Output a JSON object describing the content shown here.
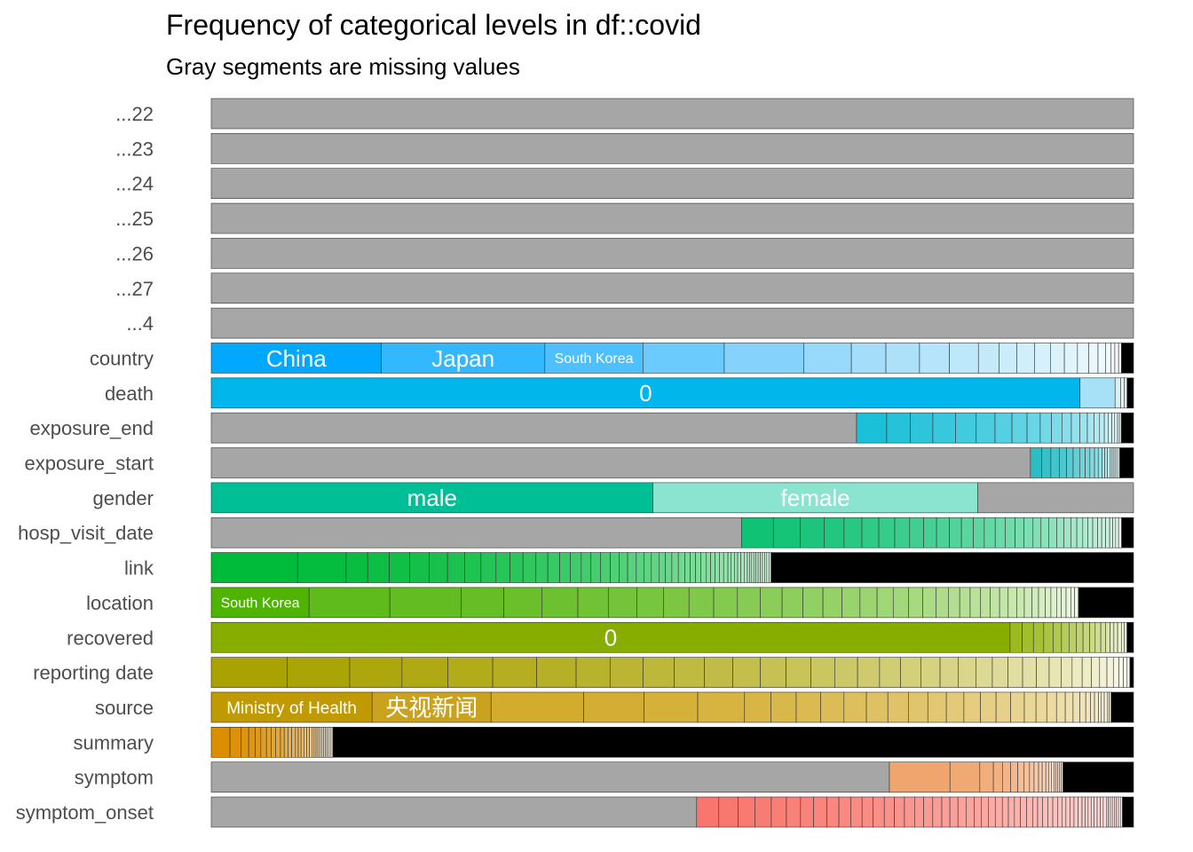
{
  "chart_data": {
    "type": "bar",
    "title": "Frequency of categorical levels in df::covid",
    "subtitle": "Gray segments are missing values",
    "colors": {
      "missing": "#a6a6a6",
      "other": "#000000",
      "border": "#333333"
    },
    "rows": [
      {
        "name": "...22",
        "segments": [
          {
            "value": 1.0,
            "color": "#a6a6a6"
          }
        ]
      },
      {
        "name": "...23",
        "segments": [
          {
            "value": 1.0,
            "color": "#a6a6a6"
          }
        ]
      },
      {
        "name": "...24",
        "segments": [
          {
            "value": 1.0,
            "color": "#a6a6a6"
          }
        ]
      },
      {
        "name": "...25",
        "segments": [
          {
            "value": 1.0,
            "color": "#a6a6a6"
          }
        ]
      },
      {
        "name": "...26",
        "segments": [
          {
            "value": 1.0,
            "color": "#a6a6a6"
          }
        ]
      },
      {
        "name": "...27",
        "segments": [
          {
            "value": 1.0,
            "color": "#a6a6a6"
          }
        ]
      },
      {
        "name": "...4",
        "segments": [
          {
            "value": 1.0,
            "color": "#a6a6a6"
          }
        ]
      },
      {
        "name": "country",
        "segments": [
          {
            "value": 0.182,
            "color": "#00a9ff",
            "label": "China",
            "label_size": 26
          },
          {
            "value": 0.175,
            "color": "#33b8ff",
            "label": "Japan",
            "label_size": 26
          },
          {
            "value": 0.105,
            "color": "#4fc0ff",
            "label": "South Korea",
            "label_size": 16
          },
          {
            "value": 0.087,
            "color": "#6ccbfd"
          },
          {
            "value": 0.085,
            "color": "#85d3fc"
          },
          {
            "value": 0.051,
            "color": "#96d9fb"
          },
          {
            "value": 0.037,
            "color": "#a4ddfa"
          },
          {
            "value": 0.036,
            "color": "#ade1fa"
          },
          {
            "value": 0.032,
            "color": "#b6e4fa"
          },
          {
            "value": 0.031,
            "color": "#bde7fa"
          },
          {
            "value": 0.022,
            "color": "#c4eafa"
          },
          {
            "value": 0.019,
            "color": "#cbedfb"
          },
          {
            "value": 0.019,
            "color": "#d1effb"
          },
          {
            "value": 0.017,
            "color": "#d6f1fb"
          },
          {
            "value": 0.015,
            "color": "#dcf3fc"
          },
          {
            "value": 0.014,
            "color": "#e0f4fc"
          },
          {
            "value": 0.012,
            "color": "#e5f6fc"
          },
          {
            "value": 0.01,
            "color": "#e9f7fd"
          },
          {
            "value": 0.008,
            "color": "#edf9fd"
          },
          {
            "value": 0.006,
            "color": "#f1fafe"
          },
          {
            "value": 0.004,
            "color": "#f4fbfe"
          },
          {
            "value": 0.004,
            "color": "#f7fcfe"
          },
          {
            "value": 0.003,
            "color": "#fafdff"
          },
          {
            "value": 0.013,
            "color": "#000000"
          }
        ]
      },
      {
        "name": "death",
        "segments": [
          {
            "value": 0.942,
            "color": "#00b6eb",
            "label": "0",
            "label_size": 26
          },
          {
            "value": 0.038,
            "color": "#a7e1f7"
          },
          {
            "value": 0.006,
            "color": "#d3f0fb"
          },
          {
            "value": 0.004,
            "color": "#e6f6fd"
          },
          {
            "value": 0.003,
            "color": "#f2fafe"
          },
          {
            "value": 0.007,
            "color": "#000000"
          }
        ]
      },
      {
        "name": "exposure_end",
        "gradient": {
          "from": "#1ac0d8",
          "to": "#f4fcfd",
          "widths": [
            0.032,
            0.025,
            0.024,
            0.024,
            0.022,
            0.02,
            0.018,
            0.016,
            0.014,
            0.012,
            0.011,
            0.01,
            0.009,
            0.008,
            0.007,
            0.006,
            0.005,
            0.004,
            0.004,
            0.003,
            0.003,
            0.002,
            0.002
          ]
        },
        "before": [
          {
            "value": 0.685,
            "color": "#a6a6a6"
          }
        ],
        "after": [
          {
            "value": 0.013,
            "color": "#000000"
          }
        ]
      },
      {
        "name": "exposure_start",
        "gradient": {
          "from": "#2cbdc5",
          "to": "#f2fbfc",
          "widths": [
            0.012,
            0.01,
            0.009,
            0.008,
            0.007,
            0.007,
            0.006,
            0.005,
            0.005,
            0.004,
            0.004,
            0.003,
            0.003,
            0.003,
            0.002,
            0.002,
            0.002,
            0.002,
            0.002
          ]
        },
        "before": [
          {
            "value": 0.882,
            "color": "#a6a6a6"
          }
        ],
        "after": [
          {
            "value": 0.015,
            "color": "#000000"
          }
        ]
      },
      {
        "name": "gender",
        "segments": [
          {
            "value": 0.479,
            "color": "#00bf96",
            "label": "male",
            "label_size": 26
          },
          {
            "value": 0.352,
            "color": "#8ae4cf",
            "label": "female",
            "label_size": 26
          },
          {
            "value": 0.169,
            "color": "#a6a6a6"
          }
        ]
      },
      {
        "name": "hosp_visit_date",
        "gradient": {
          "from": "#10c274",
          "to": "#e6f8ef",
          "widths": [
            0.032,
            0.027,
            0.024,
            0.02,
            0.018,
            0.017,
            0.016,
            0.015,
            0.014,
            0.013,
            0.013,
            0.012,
            0.012,
            0.011,
            0.011,
            0.01,
            0.01,
            0.009,
            0.009,
            0.008,
            0.008,
            0.008,
            0.007,
            0.007,
            0.006,
            0.006,
            0.005,
            0.005,
            0.005,
            0.004,
            0.004,
            0.004,
            0.003,
            0.003,
            0.003,
            0.003
          ]
        },
        "before": [
          {
            "value": 0.533,
            "color": "#a6a6a6"
          }
        ],
        "after": [
          {
            "value": 0.012,
            "color": "#000000"
          }
        ]
      },
      {
        "name": "link",
        "gradient": {
          "from": "#00bb3a",
          "to": "#d8f3df",
          "widths": [
            0.08,
            0.045,
            0.02,
            0.02,
            0.019,
            0.018,
            0.017,
            0.016,
            0.015,
            0.014,
            0.013,
            0.012,
            0.012,
            0.011,
            0.011,
            0.01,
            0.01,
            0.009,
            0.009,
            0.009,
            0.008,
            0.008,
            0.008,
            0.007,
            0.007,
            0.007,
            0.006,
            0.006,
            0.006,
            0.006,
            0.005,
            0.005,
            0.005,
            0.005,
            0.004,
            0.004,
            0.004,
            0.004,
            0.004,
            0.003,
            0.003,
            0.003,
            0.003,
            0.003,
            0.003,
            0.002,
            0.002,
            0.002,
            0.002,
            0.002,
            0.002,
            0.002,
            0.002,
            0.002,
            0.002,
            0.002
          ]
        },
        "after": [
          {
            "value": 0.336,
            "color": "#000000"
          }
        ]
      },
      {
        "name": "location",
        "segments": [
          {
            "value": 0.103,
            "color": "#4eb400",
            "label": "South Korea",
            "label_size": 16
          }
        ],
        "gradient": {
          "from": "#5fba1c",
          "to": "#eef8e4",
          "widths": [
            0.085,
            0.075,
            0.045,
            0.04,
            0.038,
            0.032,
            0.03,
            0.028,
            0.027,
            0.026,
            0.025,
            0.024,
            0.023,
            0.022,
            0.021,
            0.02,
            0.019,
            0.018,
            0.017,
            0.016,
            0.015,
            0.014,
            0.013,
            0.012,
            0.011,
            0.011,
            0.01,
            0.01,
            0.009,
            0.009,
            0.008,
            0.008,
            0.007,
            0.007,
            0.006,
            0.006,
            0.005,
            0.005,
            0.005,
            0.004,
            0.004
          ]
        },
        "after": [
          {
            "value": 0.058,
            "color": "#000000"
          }
        ]
      },
      {
        "name": "recovered",
        "segments": [
          {
            "value": 0.854,
            "color": "#87ad00",
            "label": "0",
            "label_size": 26
          }
        ],
        "gradient": {
          "from": "#9cba1f",
          "to": "#f3f7e3",
          "widths": [
            0.013,
            0.012,
            0.011,
            0.01,
            0.009,
            0.008,
            0.008,
            0.007,
            0.007,
            0.006,
            0.006,
            0.005,
            0.005,
            0.004,
            0.004,
            0.004,
            0.003,
            0.003
          ]
        },
        "after": [
          {
            "value": 0.007,
            "color": "#000000"
          }
        ]
      },
      {
        "name": "reporting date",
        "gradient": {
          "from": "#a9a200",
          "to": "#fdfdf4",
          "widths": [
            0.083,
            0.068,
            0.057,
            0.05,
            0.049,
            0.048,
            0.043,
            0.037,
            0.036,
            0.034,
            0.033,
            0.031,
            0.03,
            0.028,
            0.027,
            0.026,
            0.025,
            0.024,
            0.023,
            0.022,
            0.021,
            0.02,
            0.019,
            0.018,
            0.017,
            0.016,
            0.015,
            0.014,
            0.013,
            0.012,
            0.011,
            0.01,
            0.009,
            0.008,
            0.007,
            0.006,
            0.005,
            0.004,
            0.003
          ]
        },
        "after": [
          {
            "value": 0.004,
            "color": "#000000"
          }
        ]
      },
      {
        "name": "source",
        "segments": [
          {
            "value": 0.165,
            "color": "#c09a00",
            "label": "Ministry of Health",
            "label_size": 19
          },
          {
            "value": 0.122,
            "color": "#caa21e",
            "label": "央视新闻",
            "label_size": 26
          }
        ],
        "gradient": {
          "from": "#d3ac2e",
          "to": "#fbf6e6",
          "widths": [
            0.095,
            0.062,
            0.055,
            0.048,
            0.027,
            0.026,
            0.025,
            0.024,
            0.023,
            0.022,
            0.021,
            0.02,
            0.019,
            0.018,
            0.017,
            0.016,
            0.015,
            0.014,
            0.012,
            0.011,
            0.01,
            0.009,
            0.008,
            0.007,
            0.006,
            0.005,
            0.004,
            0.004,
            0.003,
            0.003,
            0.003,
            0.002,
            0.002
          ]
        },
        "after": [
          {
            "value": 0.023,
            "color": "#000000"
          }
        ]
      },
      {
        "name": "summary",
        "gradient": {
          "from": "#db8e00",
          "to": "#f8e8cf",
          "widths": [
            0.02,
            0.012,
            0.008,
            0.007,
            0.006,
            0.006,
            0.005,
            0.005,
            0.005,
            0.004,
            0.004,
            0.004,
            0.004,
            0.003,
            0.003,
            0.003,
            0.003,
            0.003,
            0.003,
            0.002,
            0.002,
            0.002,
            0.002,
            0.002,
            0.002,
            0.002,
            0.002,
            0.002,
            0.002,
            0.002
          ]
        },
        "after": [
          {
            "value": 0.856,
            "color": "#000000"
          }
        ]
      },
      {
        "name": "symptom",
        "gradient": {
          "from": "#f0a56e",
          "to": "#fdf0e6",
          "widths": [
            0.067,
            0.033,
            0.015,
            0.01,
            0.009,
            0.008,
            0.007,
            0.006,
            0.005,
            0.005,
            0.004,
            0.004,
            0.003,
            0.003,
            0.003,
            0.002,
            0.002,
            0.002,
            0.002,
            0.002
          ]
        },
        "before": [
          {
            "value": 0.75,
            "color": "#a6a6a6"
          }
        ],
        "after": [
          {
            "value": 0.078,
            "color": "#000000"
          }
        ]
      },
      {
        "name": "symptom_onset",
        "gradient": {
          "from": "#f8766d",
          "to": "#fff0ef",
          "widths": [
            0.022,
            0.019,
            0.017,
            0.016,
            0.015,
            0.014,
            0.013,
            0.013,
            0.012,
            0.012,
            0.011,
            0.011,
            0.011,
            0.01,
            0.01,
            0.01,
            0.009,
            0.009,
            0.009,
            0.008,
            0.008,
            0.008,
            0.008,
            0.007,
            0.007,
            0.007,
            0.007,
            0.006,
            0.006,
            0.006,
            0.006,
            0.006,
            0.005,
            0.005,
            0.005,
            0.005,
            0.005,
            0.004,
            0.004,
            0.004,
            0.004,
            0.004,
            0.004,
            0.003,
            0.003,
            0.003,
            0.003,
            0.003,
            0.003,
            0.003,
            0.003,
            0.002,
            0.002,
            0.002,
            0.002,
            0.002,
            0.002,
            0.002,
            0.002
          ]
        },
        "before": [
          {
            "value": 0.481,
            "color": "#a6a6a6"
          }
        ],
        "after": [
          {
            "value": 0.011,
            "color": "#000000"
          }
        ]
      }
    ]
  }
}
